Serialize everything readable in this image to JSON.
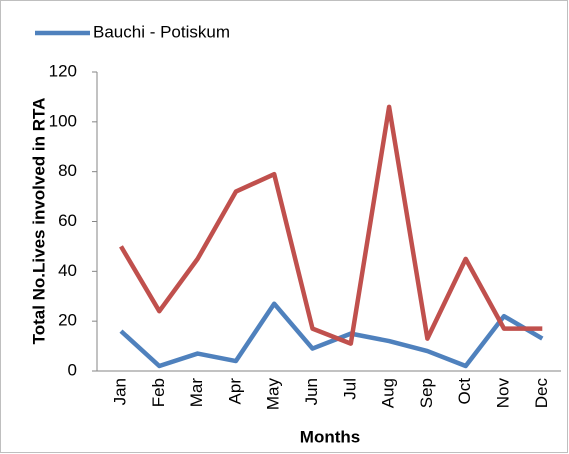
{
  "chart_data": {
    "type": "line",
    "x_label": "Months",
    "y_label": "Total No.Lives involved in RTA",
    "categories": [
      "Jan",
      "Feb",
      "Mar",
      "Apr",
      "May",
      "Jun",
      "Jul",
      "Aug",
      "Sep",
      "Oct",
      "Nov",
      "Dec"
    ],
    "series": [
      {
        "name": "Bauchi - Potiskum",
        "color": "#4f81bd",
        "values": [
          16,
          2,
          7,
          4,
          27,
          9,
          15,
          12,
          8,
          2,
          22,
          13
        ]
      },
      {
        "color": "#c0504d",
        "values": [
          50,
          24,
          45,
          72,
          79,
          17,
          11,
          106,
          13,
          45,
          17,
          17
        ]
      }
    ],
    "ylim": [
      0,
      120
    ],
    "yticks": [
      0,
      20,
      40,
      60,
      80,
      100,
      120
    ]
  }
}
